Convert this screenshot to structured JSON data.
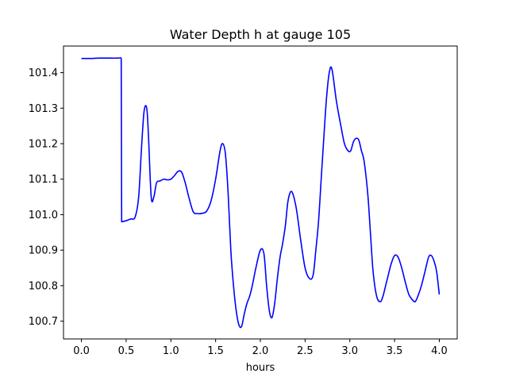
{
  "chart_data": {
    "type": "line",
    "title": "Water Depth h at gauge 105",
    "xlabel": "hours",
    "ylabel": "",
    "xlim": [
      -0.2,
      4.2
    ],
    "ylim": [
      100.65,
      101.475
    ],
    "x_ticks": [
      0.0,
      0.5,
      1.0,
      1.5,
      2.0,
      2.5,
      3.0,
      3.5,
      4.0
    ],
    "x_tick_labels": [
      "0.0",
      "0.5",
      "1.0",
      "1.5",
      "2.0",
      "2.5",
      "3.0",
      "3.5",
      "4.0"
    ],
    "y_ticks": [
      100.7,
      100.8,
      100.9,
      101.0,
      101.1,
      101.2,
      101.3,
      101.4
    ],
    "y_tick_labels": [
      "100.7",
      "100.8",
      "100.9",
      "101.0",
      "101.1",
      "101.2",
      "101.3",
      "101.4"
    ],
    "grid": false,
    "series": [
      {
        "color": "#0000ff",
        "x": [
          0.0,
          0.1,
          0.2,
          0.3,
          0.4,
          0.44,
          0.445,
          0.45,
          0.5,
          0.55,
          0.6,
          0.64,
          0.67,
          0.7,
          0.73,
          0.75,
          0.78,
          0.81,
          0.84,
          0.88,
          0.92,
          0.96,
          1.0,
          1.04,
          1.08,
          1.12,
          1.16,
          1.2,
          1.25,
          1.3,
          1.35,
          1.4,
          1.45,
          1.5,
          1.55,
          1.58,
          1.61,
          1.64,
          1.67,
          1.7,
          1.73,
          1.76,
          1.79,
          1.82,
          1.85,
          1.88,
          1.91,
          1.95,
          2.0,
          2.04,
          2.07,
          2.1,
          2.13,
          2.16,
          2.19,
          2.22,
          2.25,
          2.28,
          2.31,
          2.35,
          2.4,
          2.45,
          2.5,
          2.55,
          2.59,
          2.62,
          2.65,
          2.68,
          2.71,
          2.74,
          2.77,
          2.8,
          2.85,
          2.9,
          2.94,
          2.98,
          3.01,
          3.04,
          3.07,
          3.1,
          3.13,
          3.16,
          3.2,
          3.23,
          3.26,
          3.3,
          3.34,
          3.37,
          3.4,
          3.43,
          3.46,
          3.5,
          3.54,
          3.58,
          3.62,
          3.66,
          3.7,
          3.73,
          3.76,
          3.8,
          3.84,
          3.88,
          3.91,
          3.94,
          3.97,
          4.0
        ],
        "y": [
          101.44,
          101.44,
          101.441,
          101.441,
          101.441,
          101.442,
          101.44,
          100.98,
          100.983,
          100.988,
          100.993,
          101.05,
          101.18,
          101.29,
          101.3,
          101.22,
          101.05,
          101.05,
          101.09,
          101.095,
          101.1,
          101.098,
          101.1,
          101.11,
          101.122,
          101.12,
          101.09,
          101.05,
          101.008,
          101.003,
          101.004,
          101.01,
          101.04,
          101.1,
          101.18,
          101.2,
          101.17,
          101.06,
          100.9,
          100.8,
          100.73,
          100.69,
          100.685,
          100.72,
          100.75,
          100.77,
          100.8,
          100.85,
          100.9,
          100.89,
          100.8,
          100.73,
          100.71,
          100.75,
          100.82,
          100.88,
          100.92,
          100.97,
          101.04,
          101.065,
          101.02,
          100.93,
          100.85,
          100.82,
          100.83,
          100.9,
          100.98,
          101.1,
          101.22,
          101.33,
          101.4,
          101.41,
          101.32,
          101.25,
          101.2,
          101.18,
          101.18,
          101.205,
          101.215,
          101.21,
          101.18,
          101.15,
          101.06,
          100.95,
          100.84,
          100.77,
          100.755,
          100.77,
          100.8,
          100.83,
          100.86,
          100.885,
          100.88,
          100.85,
          100.81,
          100.775,
          100.76,
          100.755,
          100.77,
          100.8,
          100.84,
          100.88,
          100.885,
          100.87,
          100.84,
          100.775
        ]
      }
    ]
  }
}
